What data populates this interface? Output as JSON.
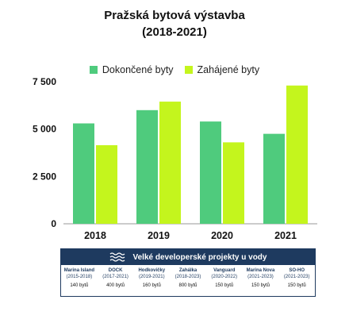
{
  "title_line1": "Pražská bytová výstavba",
  "title_line2": "(2018-2021)",
  "colors": {
    "completed": "#4fcb7d",
    "started": "#c4f51d",
    "navy": "#1e3a5f"
  },
  "chart_data": {
    "type": "bar",
    "categories": [
      "2018",
      "2019",
      "2020",
      "2021"
    ],
    "series": [
      {
        "name": "Dokončené byty",
        "values": [
          5300,
          6000,
          5400,
          4750
        ]
      },
      {
        "name": "Zahájené byty",
        "values": [
          4150,
          6450,
          4300,
          7300
        ]
      }
    ],
    "ylim": [
      0,
      7500
    ],
    "yticks": [
      0,
      2500,
      5000,
      7500
    ],
    "ytick_labels": [
      "0",
      "2 500",
      "5 000",
      "7 500"
    ],
    "legend": "top",
    "grid": false
  },
  "projects_panel": {
    "title": "Velké developerské projekty u vody",
    "projects": [
      {
        "name": "Marina Island",
        "years": "(2015-2018)",
        "units": "140 bytů"
      },
      {
        "name": "DOCK",
        "years": "(2017-2021)",
        "units": "400 bytů"
      },
      {
        "name": "Hodkovičky",
        "years": "(2019-2021)",
        "units": "160 bytů"
      },
      {
        "name": "Zahálka",
        "years": "(2018-2023)",
        "units": "800 bytů"
      },
      {
        "name": "Vanguard",
        "years": "(2020-2022)",
        "units": "150 bytů"
      },
      {
        "name": "Marina Nova",
        "years": "(2021-2023)",
        "units": "150 bytů"
      },
      {
        "name": "SO-HO",
        "years": "(2021-2023)",
        "units": "150 bytů"
      }
    ]
  }
}
